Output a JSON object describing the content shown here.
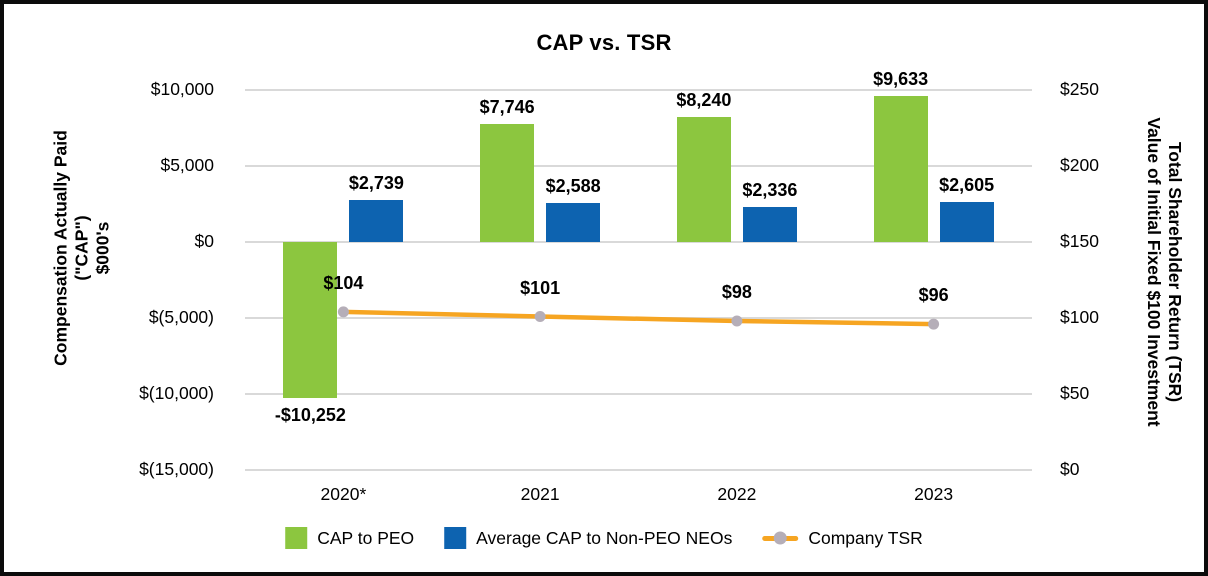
{
  "chart_data": {
    "type": "bar",
    "title": "CAP vs. TSR",
    "categories": [
      "2020*",
      "2021",
      "2022",
      "2023"
    ],
    "series": [
      {
        "name": "CAP to PEO",
        "type": "bar",
        "axis": "left",
        "color": "#8CC63F",
        "values": [
          -10252,
          7746,
          8240,
          9633
        ],
        "labels": [
          "-$10,252",
          "$7,746",
          "$8,240",
          "$9,633"
        ]
      },
      {
        "name": "Average CAP to Non-PEO NEOs",
        "type": "bar",
        "axis": "left",
        "color": "#0D63B0",
        "values": [
          2739,
          2588,
          2336,
          2605
        ],
        "labels": [
          "$2,739",
          "$2,588",
          "$2,336",
          "$2,605"
        ]
      },
      {
        "name": "Company TSR",
        "type": "line",
        "axis": "right",
        "color": "#F6A522",
        "marker_color": "#B5AEB8",
        "values": [
          104,
          101,
          98,
          96
        ],
        "labels": [
          "$104",
          "$101",
          "$98",
          "$96"
        ]
      }
    ],
    "left_axis": {
      "title_lines": [
        "Compensation Actually Paid",
        "(\"CAP\")",
        "$000's"
      ],
      "ticks": [
        "$10,000",
        "$5,000",
        "$0",
        "$(5,000)",
        "$(10,000)",
        "$(15,000)"
      ],
      "tick_values": [
        10000,
        5000,
        0,
        -5000,
        -10000,
        -15000
      ],
      "max": 10000,
      "min": -15000
    },
    "right_axis": {
      "title_lines": [
        "Total Shareholder Return (TSR)",
        "Value of Initial Fixed $100 Investment"
      ],
      "ticks": [
        "$250",
        "$200",
        "$150",
        "$100",
        "$50",
        "$0"
      ],
      "tick_values": [
        250,
        200,
        150,
        100,
        50,
        0
      ],
      "max": 250,
      "min": 0
    },
    "grid": true,
    "gridline_color": "#D9D9D9",
    "legend_position": "bottom"
  }
}
